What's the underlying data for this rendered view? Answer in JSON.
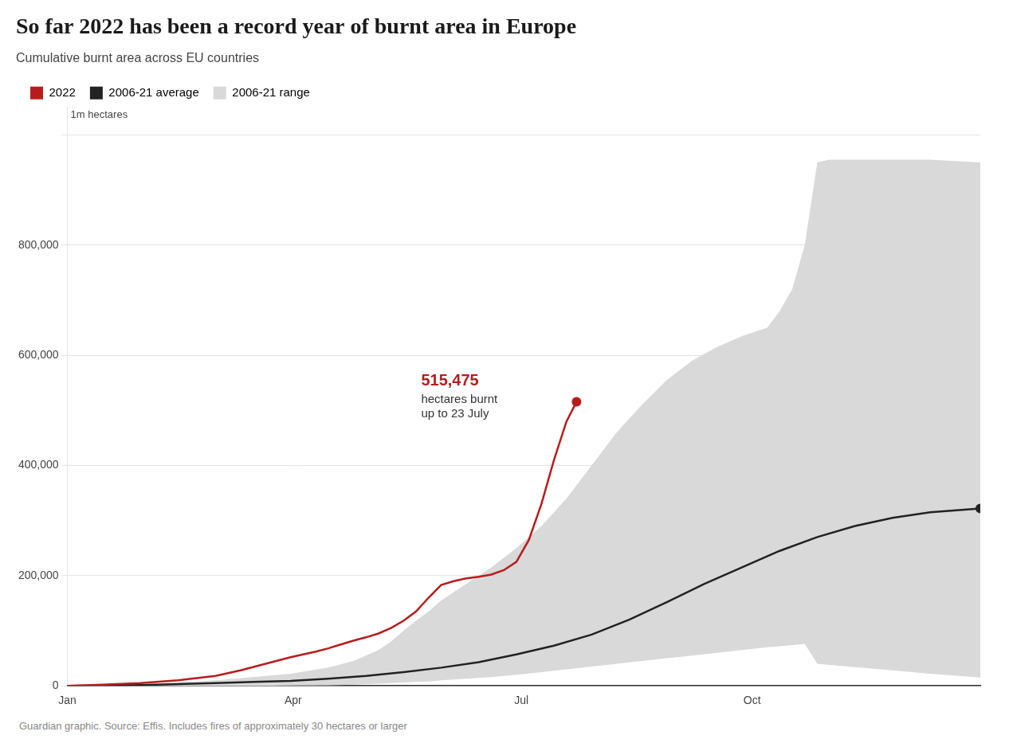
{
  "chart_data": {
    "type": "line",
    "title": "So far 2022 has been a record year of burnt area in Europe",
    "subtitle": "Cumulative burnt area across EU countries",
    "ylabel": "1m hectares",
    "source": "Guardian graphic. Source: Effis. Includes fires of approximately 30 hectares or larger",
    "legend": "top",
    "grid": "y",
    "xlim": [
      1,
      365
    ],
    "xticks": [
      {
        "value": 1,
        "label": "Jan"
      },
      {
        "value": 91,
        "label": "Apr"
      },
      {
        "value": 182,
        "label": "Jul"
      },
      {
        "value": 274,
        "label": "Oct"
      }
    ],
    "ylim": [
      0,
      1050000
    ],
    "yticks": [
      0,
      {
        "value": 200000,
        "label": "200,000"
      },
      {
        "value": 400000,
        "label": "400,000"
      },
      {
        "value": 600000,
        "label": "600,000"
      },
      {
        "value": 800000,
        "label": "800,000"
      },
      {
        "value": 1000000,
        "label": null
      }
    ],
    "series": [
      {
        "name": "2006-21 range",
        "type": "range",
        "color": "#d9d9d9",
        "x": [
          1,
          15,
          30,
          45,
          60,
          75,
          90,
          105,
          115,
          120,
          125,
          130,
          135,
          140,
          145,
          150,
          160,
          170,
          180,
          190,
          200,
          210,
          220,
          230,
          240,
          250,
          260,
          270,
          280,
          285,
          290,
          295,
          300,
          305,
          310,
          315,
          320,
          330,
          345,
          365
        ],
        "low": [
          0,
          0,
          0,
          0,
          0,
          0,
          500,
          1000,
          2000,
          3000,
          4000,
          5000,
          6000,
          7000,
          8000,
          10000,
          13000,
          16000,
          20000,
          25000,
          30000,
          35000,
          40000,
          45000,
          50000,
          55000,
          60000,
          65000,
          70000,
          72000,
          74000,
          76000,
          40000,
          38000,
          36000,
          34000,
          32000,
          28000,
          22000,
          15000
        ],
        "high": [
          0,
          1000,
          3000,
          6000,
          10000,
          16000,
          22000,
          33000,
          45000,
          55000,
          65000,
          80000,
          100000,
          118000,
          135000,
          155000,
          185000,
          215000,
          250000,
          290000,
          340000,
          400000,
          460000,
          510000,
          555000,
          590000,
          615000,
          635000,
          650000,
          680000,
          720000,
          800000,
          950000,
          955000,
          955000,
          955000,
          955000,
          955000,
          955000,
          950000
        ]
      },
      {
        "name": "2006-21 average",
        "color": "#222222",
        "marker": "end",
        "x": [
          1,
          15,
          30,
          45,
          60,
          75,
          90,
          105,
          120,
          135,
          150,
          165,
          180,
          195,
          210,
          225,
          240,
          255,
          270,
          285,
          300,
          315,
          330,
          345,
          365
        ],
        "values": [
          0,
          500,
          1500,
          3000,
          5000,
          7000,
          9000,
          13000,
          18000,
          25000,
          33000,
          43000,
          57000,
          73000,
          93000,
          120000,
          152000,
          185000,
          215000,
          245000,
          270000,
          290000,
          305000,
          315000,
          322000
        ]
      },
      {
        "name": "2022",
        "color": "#b71c1c",
        "marker": "end",
        "x": [
          1,
          15,
          30,
          45,
          60,
          70,
          80,
          90,
          100,
          105,
          110,
          115,
          120,
          125,
          130,
          135,
          140,
          145,
          150,
          155,
          160,
          165,
          170,
          175,
          180,
          185,
          190,
          195,
          200,
          204
        ],
        "values": [
          0,
          2000,
          5000,
          10000,
          18000,
          28000,
          40000,
          52000,
          62000,
          68000,
          75000,
          82000,
          88000,
          95000,
          105000,
          118000,
          135000,
          160000,
          183000,
          190000,
          195000,
          198000,
          202000,
          210000,
          225000,
          265000,
          330000,
          410000,
          480000,
          515475
        ]
      }
    ],
    "annotations": [
      {
        "text": "515,475",
        "x": 204,
        "y": 515475,
        "color": "#b71c1c"
      },
      {
        "text": "hectares burnt\nup to 23 July",
        "x": 204,
        "y": 515475
      }
    ]
  }
}
